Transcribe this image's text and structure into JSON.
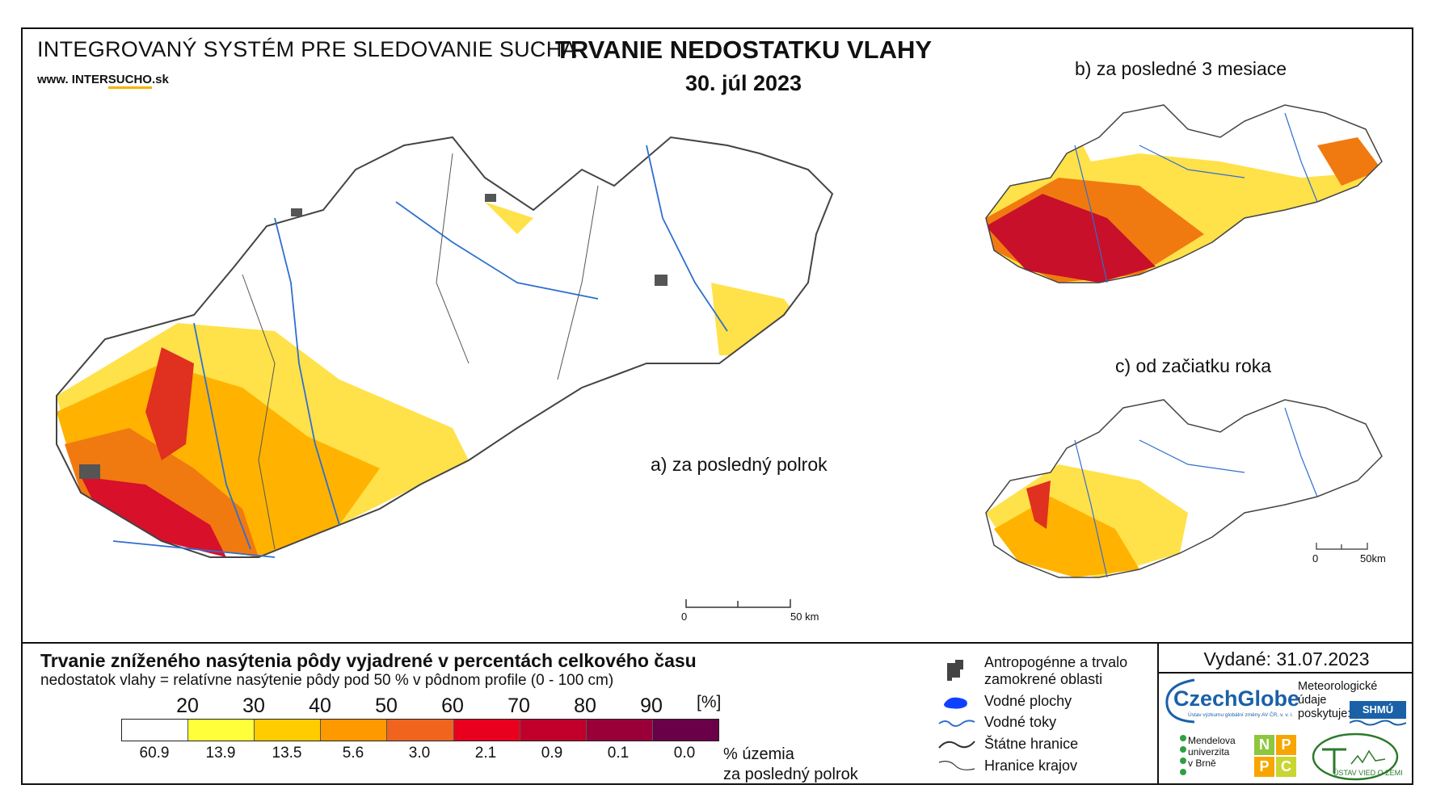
{
  "header": {
    "system_title": "INTEGROVANÝ SYSTÉM PRE SLEDOVANIE SUCHA",
    "website_prefix": "www. INTER",
    "website_highlight": "SUCHO",
    "website_suffix": ".sk",
    "main_title": "TRVANIE NEDOSTATKU VLAHY",
    "date": "30. júl 2023"
  },
  "maps": {
    "a_label": "a) za posledný polrok",
    "b_label": "b) za posledné 3 mesiace",
    "c_label": "c) od začiatku roka",
    "scale_main": {
      "start": "0",
      "end": "50 km"
    },
    "scale_small": {
      "start": "0",
      "end": "50km"
    }
  },
  "legend": {
    "title": "Trvanie zníženého nasýtenia pôdy vyjadrené v percentách celkového času",
    "subtitle": "nedostatok vlahy = relatívne nasýtenie pôdy pod 50 % v pôdnom profile (0 - 100 cm)",
    "thresholds": [
      "20",
      "30",
      "40",
      "50",
      "60",
      "70",
      "80",
      "90"
    ],
    "unit": "[%]",
    "colors": [
      "#ffffff",
      "#ffff3a",
      "#ffcc00",
      "#ff9900",
      "#f06420",
      "#e8001e",
      "#c0002a",
      "#9a0038",
      "#6a0048"
    ],
    "percentages": [
      "60.9",
      "13.9",
      "13.5",
      "5.6",
      "3.0",
      "2.1",
      "0.9",
      "0.1",
      "0.0"
    ],
    "percent_label_line1": "% územia",
    "percent_label_line2": "za posledný polrok"
  },
  "symbol_legend": {
    "urban_line1": "Antropogénne a trvalo",
    "urban_line2": "zamokrené oblasti",
    "water_bodies": "Vodné plochy",
    "rivers": "Vodné toky",
    "state_border": "Štátne hranice",
    "region_border": "Hranice krajov"
  },
  "footer": {
    "issued": "Vydané: 31.07.2023",
    "czechglobe": "CzechGlobe",
    "czechglobe_sub": "Ústav výzkumu globální změny AV ČR, v. v. i.",
    "meteo_line1": "Meteorologické",
    "meteo_line2": "údaje",
    "meteo_line3": "poskytuje:",
    "shmu": "SHMÚ",
    "mendel_line1": "Mendelova",
    "mendel_line2": "univerzita",
    "mendel_line3": "v Brně",
    "nppc": [
      "N",
      "P",
      "P",
      "C"
    ],
    "uvz": "ÚSTAV VIED O ZEMI"
  }
}
